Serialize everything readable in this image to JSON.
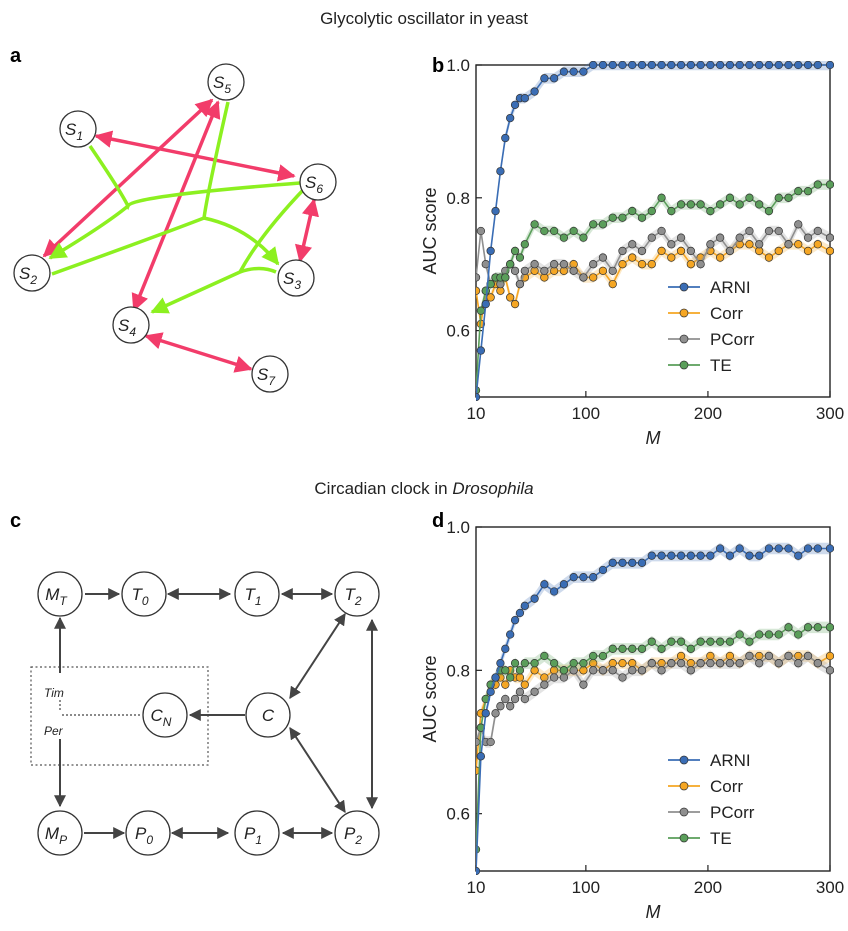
{
  "titles": {
    "top": "Glycolytic oscillator in yeast",
    "bottom_pre": "Circadian clock in ",
    "bottom_em": "Drosophila"
  },
  "panel_labels": {
    "a": "a",
    "b": "b",
    "c": "c",
    "d": "d"
  },
  "colors": {
    "ARNI": "#3a6db5",
    "Corr": "#f5a623",
    "PCorr": "#8f8f8f",
    "TE": "#5a9e5a",
    "pink": "#f23c6a",
    "lime": "#8cf020",
    "dark": "#444444"
  },
  "network_a": {
    "nodes": [
      {
        "id": "S1",
        "base": "S",
        "sub": "1"
      },
      {
        "id": "S2",
        "base": "S",
        "sub": "2"
      },
      {
        "id": "S3",
        "base": "S",
        "sub": "3"
      },
      {
        "id": "S4",
        "base": "S",
        "sub": "4"
      },
      {
        "id": "S5",
        "base": "S",
        "sub": "5"
      },
      {
        "id": "S6",
        "base": "S",
        "sub": "6"
      },
      {
        "id": "S7",
        "base": "S",
        "sub": "7"
      }
    ]
  },
  "network_c": {
    "nodes": [
      {
        "id": "MT",
        "base": "M",
        "sub": "T"
      },
      {
        "id": "T0",
        "base": "T",
        "sub": "0"
      },
      {
        "id": "T1",
        "base": "T",
        "sub": "1"
      },
      {
        "id": "T2",
        "base": "T",
        "sub": "2"
      },
      {
        "id": "CN",
        "base": "C",
        "sub": "N"
      },
      {
        "id": "C",
        "base": "C",
        "sub": ""
      },
      {
        "id": "MP",
        "base": "M",
        "sub": "P"
      },
      {
        "id": "P0",
        "base": "P",
        "sub": "0"
      },
      {
        "id": "P1",
        "base": "P",
        "sub": "1"
      },
      {
        "id": "P2",
        "base": "P",
        "sub": "2"
      }
    ],
    "box_labels": {
      "tim": "Tim",
      "per": "Per"
    }
  },
  "chart_data": [
    {
      "type": "line",
      "panel": "b",
      "xlabel": "M",
      "ylabel": "AUC score",
      "xlim": [
        10,
        300
      ],
      "ylim": [
        0.5,
        1.0
      ],
      "xticks": [
        10,
        100,
        200,
        300
      ],
      "yticks": [
        0.6,
        0.8,
        1.0
      ],
      "legend_position": "bottom-right",
      "x": [
        10,
        14,
        18,
        22,
        26,
        30,
        34,
        38,
        42,
        46,
        50,
        58,
        66,
        74,
        82,
        90,
        98,
        106,
        114,
        122,
        130,
        138,
        146,
        154,
        162,
        170,
        178,
        186,
        194,
        202,
        210,
        218,
        226,
        234,
        242,
        250,
        258,
        266,
        274,
        282,
        290,
        300
      ],
      "series": [
        {
          "name": "ARNI",
          "values": [
            0.5,
            0.57,
            0.64,
            0.72,
            0.78,
            0.84,
            0.89,
            0.92,
            0.94,
            0.95,
            0.95,
            0.96,
            0.98,
            0.98,
            0.99,
            0.99,
            0.99,
            1.0,
            1.0,
            1.0,
            1.0,
            1.0,
            1.0,
            1.0,
            1.0,
            1.0,
            1.0,
            1.0,
            1.0,
            1.0,
            1.0,
            1.0,
            1.0,
            1.0,
            1.0,
            1.0,
            1.0,
            1.0,
            1.0,
            1.0,
            1.0,
            1.0
          ]
        },
        {
          "name": "Corr",
          "values": [
            0.66,
            0.61,
            0.66,
            0.65,
            0.67,
            0.66,
            0.68,
            0.65,
            0.64,
            0.67,
            0.68,
            0.69,
            0.68,
            0.69,
            0.69,
            0.7,
            0.68,
            0.68,
            0.69,
            0.67,
            0.7,
            0.71,
            0.7,
            0.7,
            0.72,
            0.71,
            0.72,
            0.7,
            0.71,
            0.72,
            0.71,
            0.72,
            0.73,
            0.73,
            0.72,
            0.71,
            0.72,
            0.73,
            0.73,
            0.72,
            0.73,
            0.72
          ]
        },
        {
          "name": "PCorr",
          "values": [
            0.68,
            0.75,
            0.7,
            0.67,
            0.68,
            0.67,
            0.69,
            0.7,
            0.69,
            0.67,
            0.69,
            0.7,
            0.69,
            0.7,
            0.7,
            0.69,
            0.68,
            0.7,
            0.71,
            0.69,
            0.72,
            0.73,
            0.72,
            0.74,
            0.75,
            0.73,
            0.74,
            0.72,
            0.7,
            0.73,
            0.74,
            0.72,
            0.74,
            0.75,
            0.73,
            0.75,
            0.75,
            0.73,
            0.76,
            0.74,
            0.75,
            0.74
          ]
        },
        {
          "name": "TE",
          "values": [
            0.51,
            0.63,
            0.66,
            0.67,
            0.68,
            0.68,
            0.68,
            0.7,
            0.72,
            0.71,
            0.73,
            0.76,
            0.75,
            0.75,
            0.74,
            0.75,
            0.74,
            0.76,
            0.76,
            0.77,
            0.77,
            0.78,
            0.77,
            0.78,
            0.8,
            0.78,
            0.79,
            0.79,
            0.79,
            0.78,
            0.79,
            0.8,
            0.79,
            0.8,
            0.79,
            0.78,
            0.8,
            0.8,
            0.81,
            0.81,
            0.82,
            0.82
          ]
        }
      ]
    },
    {
      "type": "line",
      "panel": "d",
      "xlabel": "M",
      "ylabel": "AUC score",
      "xlim": [
        10,
        300
      ],
      "ylim": [
        0.52,
        1.0
      ],
      "xticks": [
        10,
        100,
        200,
        300
      ],
      "yticks": [
        0.6,
        0.8,
        1.0
      ],
      "legend_position": "bottom-right",
      "x": [
        10,
        14,
        18,
        22,
        26,
        30,
        34,
        38,
        42,
        46,
        50,
        58,
        66,
        74,
        82,
        90,
        98,
        106,
        114,
        122,
        130,
        138,
        146,
        154,
        162,
        170,
        178,
        186,
        194,
        202,
        210,
        218,
        226,
        234,
        242,
        250,
        258,
        266,
        274,
        282,
        290,
        300
      ],
      "series": [
        {
          "name": "ARNI",
          "values": [
            0.52,
            0.68,
            0.74,
            0.77,
            0.79,
            0.81,
            0.83,
            0.85,
            0.87,
            0.88,
            0.89,
            0.9,
            0.92,
            0.91,
            0.92,
            0.93,
            0.93,
            0.93,
            0.94,
            0.95,
            0.95,
            0.95,
            0.95,
            0.96,
            0.96,
            0.96,
            0.96,
            0.96,
            0.96,
            0.96,
            0.97,
            0.96,
            0.97,
            0.96,
            0.96,
            0.97,
            0.97,
            0.97,
            0.96,
            0.97,
            0.97,
            0.97
          ]
        },
        {
          "name": "Corr",
          "values": [
            0.66,
            0.74,
            0.76,
            0.78,
            0.78,
            0.79,
            0.78,
            0.8,
            0.79,
            0.79,
            0.78,
            0.8,
            0.79,
            0.8,
            0.8,
            0.8,
            0.8,
            0.81,
            0.8,
            0.81,
            0.81,
            0.81,
            0.8,
            0.81,
            0.81,
            0.81,
            0.82,
            0.81,
            0.81,
            0.82,
            0.81,
            0.82,
            0.81,
            0.82,
            0.82,
            0.82,
            0.81,
            0.82,
            0.82,
            0.82,
            0.81,
            0.82
          ]
        },
        {
          "name": "PCorr",
          "values": [
            0.7,
            0.72,
            0.7,
            0.7,
            0.74,
            0.75,
            0.76,
            0.75,
            0.76,
            0.77,
            0.76,
            0.77,
            0.78,
            0.79,
            0.79,
            0.8,
            0.78,
            0.8,
            0.8,
            0.8,
            0.79,
            0.8,
            0.8,
            0.81,
            0.8,
            0.81,
            0.81,
            0.8,
            0.81,
            0.81,
            0.81,
            0.81,
            0.81,
            0.82,
            0.81,
            0.82,
            0.81,
            0.82,
            0.81,
            0.82,
            0.81,
            0.8
          ]
        },
        {
          "name": "TE",
          "values": [
            0.55,
            0.72,
            0.76,
            0.78,
            0.79,
            0.8,
            0.8,
            0.79,
            0.81,
            0.8,
            0.81,
            0.81,
            0.82,
            0.81,
            0.8,
            0.81,
            0.81,
            0.82,
            0.82,
            0.83,
            0.83,
            0.83,
            0.83,
            0.84,
            0.83,
            0.84,
            0.84,
            0.83,
            0.84,
            0.84,
            0.84,
            0.84,
            0.85,
            0.84,
            0.85,
            0.85,
            0.85,
            0.86,
            0.85,
            0.86,
            0.86,
            0.86
          ]
        }
      ]
    }
  ]
}
